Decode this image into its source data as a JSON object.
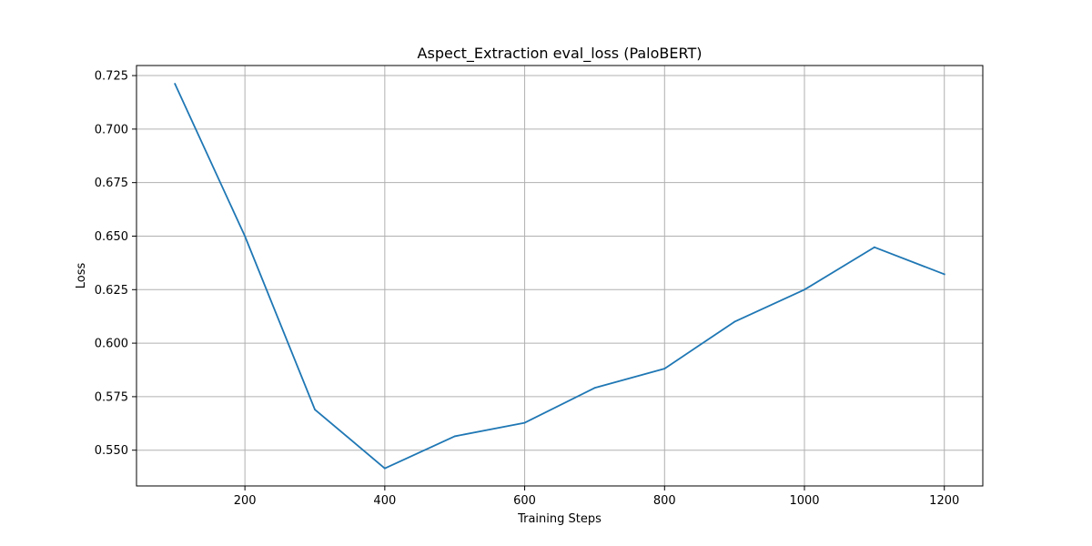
{
  "chart_data": {
    "type": "line",
    "title": "Aspect_Extraction eval_loss (PaloBERT)",
    "xlabel": "Training Steps",
    "ylabel": "Loss",
    "xlim": [
      45,
      1255
    ],
    "ylim": [
      0.5333,
      0.7297
    ],
    "x_ticks": [
      200,
      400,
      600,
      800,
      1000,
      1200
    ],
    "x_tick_labels": [
      "200",
      "400",
      "600",
      "800",
      "1000",
      "1200"
    ],
    "y_ticks": [
      0.55,
      0.575,
      0.6,
      0.625,
      0.65,
      0.675,
      0.7,
      0.725
    ],
    "y_tick_labels": [
      "0.550",
      "0.575",
      "0.600",
      "0.625",
      "0.650",
      "0.675",
      "0.700",
      "0.725"
    ],
    "grid": true,
    "series": [
      {
        "color": "#1f77b4",
        "x": [
          100,
          200,
          300,
          400,
          500,
          600,
          700,
          800,
          900,
          1000,
          1100,
          1200
        ],
        "values": [
          0.7211,
          0.65,
          0.569,
          0.5415,
          0.5565,
          0.5628,
          0.5791,
          0.5881,
          0.61,
          0.625,
          0.6448,
          0.6322
        ]
      }
    ]
  }
}
